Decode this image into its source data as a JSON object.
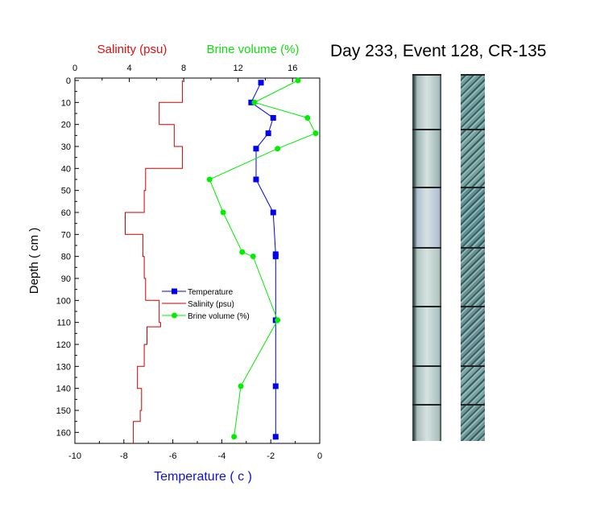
{
  "title": "Day 233, Event 128, CR-135",
  "chart_data": {
    "type": "line",
    "ylabel": "Depth ( cm )",
    "ylim": [
      0,
      165
    ],
    "y_ticks": [
      0,
      10,
      20,
      30,
      40,
      50,
      60,
      70,
      80,
      90,
      100,
      110,
      120,
      130,
      140,
      150,
      160
    ],
    "bottom_axis": {
      "label": "Temperature ( c )",
      "range": [
        -10,
        0
      ],
      "ticks": [
        -10,
        -8,
        -6,
        -4,
        -2,
        0
      ],
      "color": "#1010cc"
    },
    "top_axis_salinity": {
      "label": "Salinity (psu)",
      "range": [
        0,
        18
      ],
      "ticks": [
        0,
        4,
        8,
        12,
        16
      ],
      "color": "#dd1010"
    },
    "top_axis_brine": {
      "label": "Brine volume (%)",
      "color": "#10dd10"
    },
    "series": [
      {
        "name": "Temperature",
        "color": "#0000ee",
        "marker": "square",
        "axis": "bottom",
        "x": [
          -2.4,
          -2.8,
          -1.9,
          -2.1,
          -2.6,
          -2.6,
          -1.9,
          -1.8,
          -1.8,
          -1.8,
          -1.8,
          -1.8
        ],
        "y": [
          1,
          10,
          17,
          24,
          31,
          45,
          60,
          79,
          80,
          109,
          139,
          162
        ]
      },
      {
        "name": "Salinity (psu)",
        "color": "#cc0000",
        "marker": "none",
        "axis": "top",
        "step": true,
        "x": [
          7.9,
          7.9,
          6.2,
          6.2,
          7.3,
          7.3,
          7.9,
          7.9,
          5.2,
          5.2,
          5.1,
          5.1,
          3.7,
          3.7,
          5.0,
          5.0,
          5.1,
          5.1,
          5.2,
          5.2,
          6.2,
          6.2,
          6.3,
          6.3,
          5.3,
          5.3,
          5.1,
          5.1,
          4.6,
          4.6,
          4.9,
          4.9,
          4.8,
          4.8,
          4.3,
          4.3
        ],
        "y": [
          0,
          10,
          10,
          20,
          20,
          30,
          30,
          40,
          40,
          50,
          50,
          60,
          60,
          70,
          70,
          80,
          80,
          90,
          90,
          100,
          100,
          110,
          110,
          112,
          112,
          120,
          120,
          130,
          130,
          140,
          140,
          150,
          150,
          155,
          155,
          165
        ]
      },
      {
        "name": "Brine volume (%)",
        "color": "#00ee00",
        "marker": "circle",
        "axis": "top",
        "x": [
          16.4,
          13.2,
          17.1,
          17.7,
          14.9,
          9.9,
          10.9,
          12.3,
          13.1,
          14.9,
          12.2,
          11.7
        ],
        "y": [
          0,
          10,
          17,
          24,
          31,
          45,
          60,
          78,
          80,
          109,
          139,
          162
        ]
      }
    ],
    "legend": {
      "position": "center-left",
      "items": [
        "Temperature",
        "Salinity (psu)",
        "Brine volume (%)"
      ]
    }
  },
  "core_images": [
    {
      "name": "ice-core-photo",
      "segments": [
        "#a9bfbf",
        "#9cb5b3",
        "#b0bfd2",
        "#b1c6c1",
        "#a8c4c3",
        "#a7c1bf",
        "#aabebc"
      ]
    },
    {
      "name": "ice-core-thin-section",
      "segments": [
        "#6f9c9a",
        "#7aa09c",
        "#5e8e94",
        "#6a8f8d",
        "#6e8e96",
        "#7ba3a2",
        "#6f9694"
      ]
    }
  ]
}
